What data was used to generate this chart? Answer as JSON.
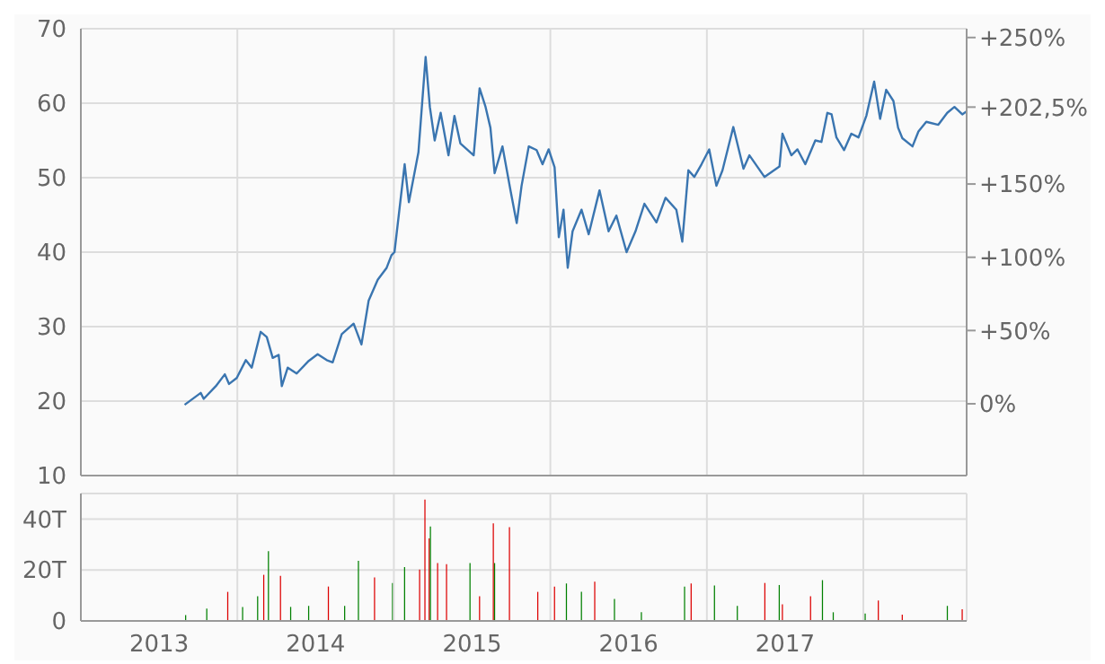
{
  "chart_data": [
    {
      "type": "line",
      "xlim": [
        2013,
        2018.66
      ],
      "xticks": [
        {
          "value": 2014,
          "label": null
        },
        {
          "value": 2015,
          "label": null
        },
        {
          "value": 2016,
          "label": null
        },
        {
          "value": 2017,
          "label": null
        },
        {
          "value": 2018,
          "label": null
        }
      ],
      "tick_labels": "y",
      "ylim": [
        10,
        70
      ],
      "yticks": [
        10,
        20,
        30,
        40,
        50,
        60,
        70
      ],
      "y2lim": [
        -49,
        256
      ],
      "y2ticks": [
        {
          "value": 0,
          "label": "0%"
        },
        {
          "value": 50,
          "label": "+50%"
        },
        {
          "value": 100,
          "label": "+100%"
        },
        {
          "value": 150,
          "label": "+150%"
        },
        {
          "value": 202.5,
          "label": "+202,5%"
        },
        {
          "value": 250,
          "label": "+250%"
        }
      ],
      "grid": true,
      "marker": "none",
      "series": [
        {
          "color": "#3a75b0",
          "x": [
            2013.663,
            2013.766,
            2013.785,
            2013.862,
            2013.92,
            2013.947,
            2013.996,
            2014.054,
            2014.092,
            2014.149,
            2014.188,
            2014.226,
            2014.264,
            2014.284,
            2014.322,
            2014.379,
            2014.456,
            2014.513,
            2014.571,
            2014.609,
            2014.667,
            2014.743,
            2014.793,
            2014.839,
            2014.897,
            2014.954,
            2014.985,
            2015.004,
            2015.031,
            2015.069,
            2015.096,
            2015.157,
            2015.203,
            2015.23,
            2015.261,
            2015.299,
            2015.349,
            2015.387,
            2015.425,
            2015.51,
            2015.548,
            2015.586,
            2015.617,
            2015.644,
            2015.694,
            2015.747,
            2015.785,
            2015.816,
            2015.862,
            2015.912,
            2015.95,
            2015.989,
            2016.027,
            2016.054,
            2016.084,
            2016.111,
            2016.142,
            2016.199,
            2016.245,
            2016.314,
            2016.372,
            2016.422,
            2016.487,
            2016.544,
            2016.601,
            2016.678,
            2016.736,
            2016.805,
            2016.843,
            2016.882,
            2016.92,
            2016.966,
            2017.015,
            2017.061,
            2017.1,
            2017.169,
            2017.234,
            2017.272,
            2017.368,
            2017.464,
            2017.483,
            2017.54,
            2017.579,
            2017.629,
            2017.693,
            2017.732,
            2017.77,
            2017.797,
            2017.828,
            2017.877,
            2017.923,
            2017.969,
            2018.019,
            2018.069,
            2018.107,
            2018.146,
            2018.192,
            2018.222,
            2018.249,
            2018.314,
            2018.352,
            2018.402,
            2018.479,
            2018.536,
            2018.582,
            2018.632,
            2018.659
          ],
          "values": [
            19.5,
            21.1,
            20.3,
            22.0,
            23.6,
            22.3,
            23.1,
            25.5,
            24.5,
            29.3,
            28.6,
            25.8,
            26.2,
            22.0,
            24.5,
            23.7,
            25.4,
            26.3,
            25.5,
            25.2,
            29.0,
            30.4,
            27.6,
            33.5,
            36.3,
            37.9,
            39.6,
            40.0,
            44.9,
            51.8,
            46.7,
            53.4,
            66.2,
            59.5,
            55.0,
            58.7,
            53.0,
            58.3,
            54.6,
            53.0,
            62.0,
            59.5,
            56.7,
            50.6,
            54.2,
            48.1,
            43.9,
            48.9,
            54.2,
            53.7,
            51.8,
            53.8,
            51.4,
            42.0,
            45.7,
            37.9,
            42.8,
            45.7,
            42.4,
            48.3,
            42.8,
            44.9,
            40.0,
            42.8,
            46.5,
            44.0,
            47.3,
            45.7,
            41.4,
            51.0,
            50.1,
            51.8,
            53.8,
            48.9,
            51.0,
            56.8,
            51.2,
            53.0,
            50.1,
            51.5,
            55.9,
            53.0,
            53.8,
            51.8,
            55.0,
            54.8,
            58.7,
            58.5,
            55.4,
            53.7,
            55.9,
            55.4,
            58.3,
            62.9,
            57.9,
            61.8,
            60.3,
            56.7,
            55.3,
            54.2,
            56.2,
            57.5,
            57.1,
            58.7,
            59.5,
            58.5,
            58.9
          ]
        }
      ]
    },
    {
      "type": "bar",
      "xlim": [
        2013,
        2018.66
      ],
      "xticks": [
        {
          "value": 2013.5,
          "label": "2013"
        },
        {
          "value": 2014,
          "label": null
        },
        {
          "value": 2014.5,
          "label": "2014"
        },
        {
          "value": 2015,
          "label": null
        },
        {
          "value": 2015.5,
          "label": "2015"
        },
        {
          "value": 2016,
          "label": null
        },
        {
          "value": 2016.5,
          "label": "2016"
        },
        {
          "value": 2017,
          "label": null
        },
        {
          "value": 2017.5,
          "label": "2017"
        },
        {
          "value": 2018,
          "label": null
        }
      ],
      "ylim": [
        0,
        50
      ],
      "yticks": [
        0,
        {
          "value": 20,
          "label": "20T"
        },
        {
          "value": 40,
          "label": "40T"
        }
      ],
      "grid": true,
      "series": [
        {
          "x": [
            2013.67,
            2013.805,
            2013.939,
            2014.034,
            2014.13,
            2014.169,
            2014.199,
            2014.276,
            2014.341,
            2014.456,
            2014.582,
            2014.686,
            2014.774,
            2014.877,
            2014.992,
            2015.069,
            2015.165,
            2015.199,
            2015.226,
            2015.234,
            2015.28,
            2015.337,
            2015.487,
            2015.548,
            2015.636,
            2015.644,
            2015.739,
            2015.92,
            2016.027,
            2016.103,
            2016.199,
            2016.284,
            2016.41,
            2016.582,
            2016.858,
            2016.9,
            2017.049,
            2017.195,
            2017.371,
            2017.463,
            2017.483,
            2017.663,
            2017.739,
            2017.808,
            2018.012,
            2018.096,
            2018.249,
            2018.537,
            2018.632
          ],
          "values": [
            2.3,
            4.8,
            11.4,
            5.5,
            9.7,
            18.1,
            27.4,
            17.7,
            5.5,
            5.9,
            13.5,
            5.9,
            23.6,
            17.1,
            14.9,
            21.1,
            20.2,
            47.6,
            32.4,
            37.1,
            22.7,
            22.3,
            22.7,
            9.7,
            38.3,
            22.7,
            36.8,
            11.4,
            13.5,
            14.7,
            11.4,
            15.4,
            8.6,
            3.4,
            13.5,
            14.7,
            13.9,
            5.9,
            14.9,
            14.1,
            6.5,
            9.7,
            16.0,
            3.4,
            2.9,
            8.0,
            2.5,
            5.9,
            4.6
          ],
          "colors": [
            "#008000",
            "#008000",
            "#dd0000",
            "#008000",
            "#008000",
            "#dd0000",
            "#008000",
            "#dd0000",
            "#008000",
            "#008000",
            "#dd0000",
            "#008000",
            "#008000",
            "#dd0000",
            "#008000",
            "#008000",
            "#dd0000",
            "#dd0000",
            "#dd0000",
            "#008000",
            "#dd0000",
            "#dd0000",
            "#008000",
            "#dd0000",
            "#dd0000",
            "#008000",
            "#dd0000",
            "#dd0000",
            "#dd0000",
            "#008000",
            "#008000",
            "#dd0000",
            "#008000",
            "#008000",
            "#008000",
            "#dd0000",
            "#008000",
            "#008000",
            "#dd0000",
            "#008000",
            "#dd0000",
            "#dd0000",
            "#008000",
            "#008000",
            "#008000",
            "#dd0000",
            "#dd0000",
            "#008000",
            "#dd0000"
          ]
        }
      ]
    }
  ]
}
